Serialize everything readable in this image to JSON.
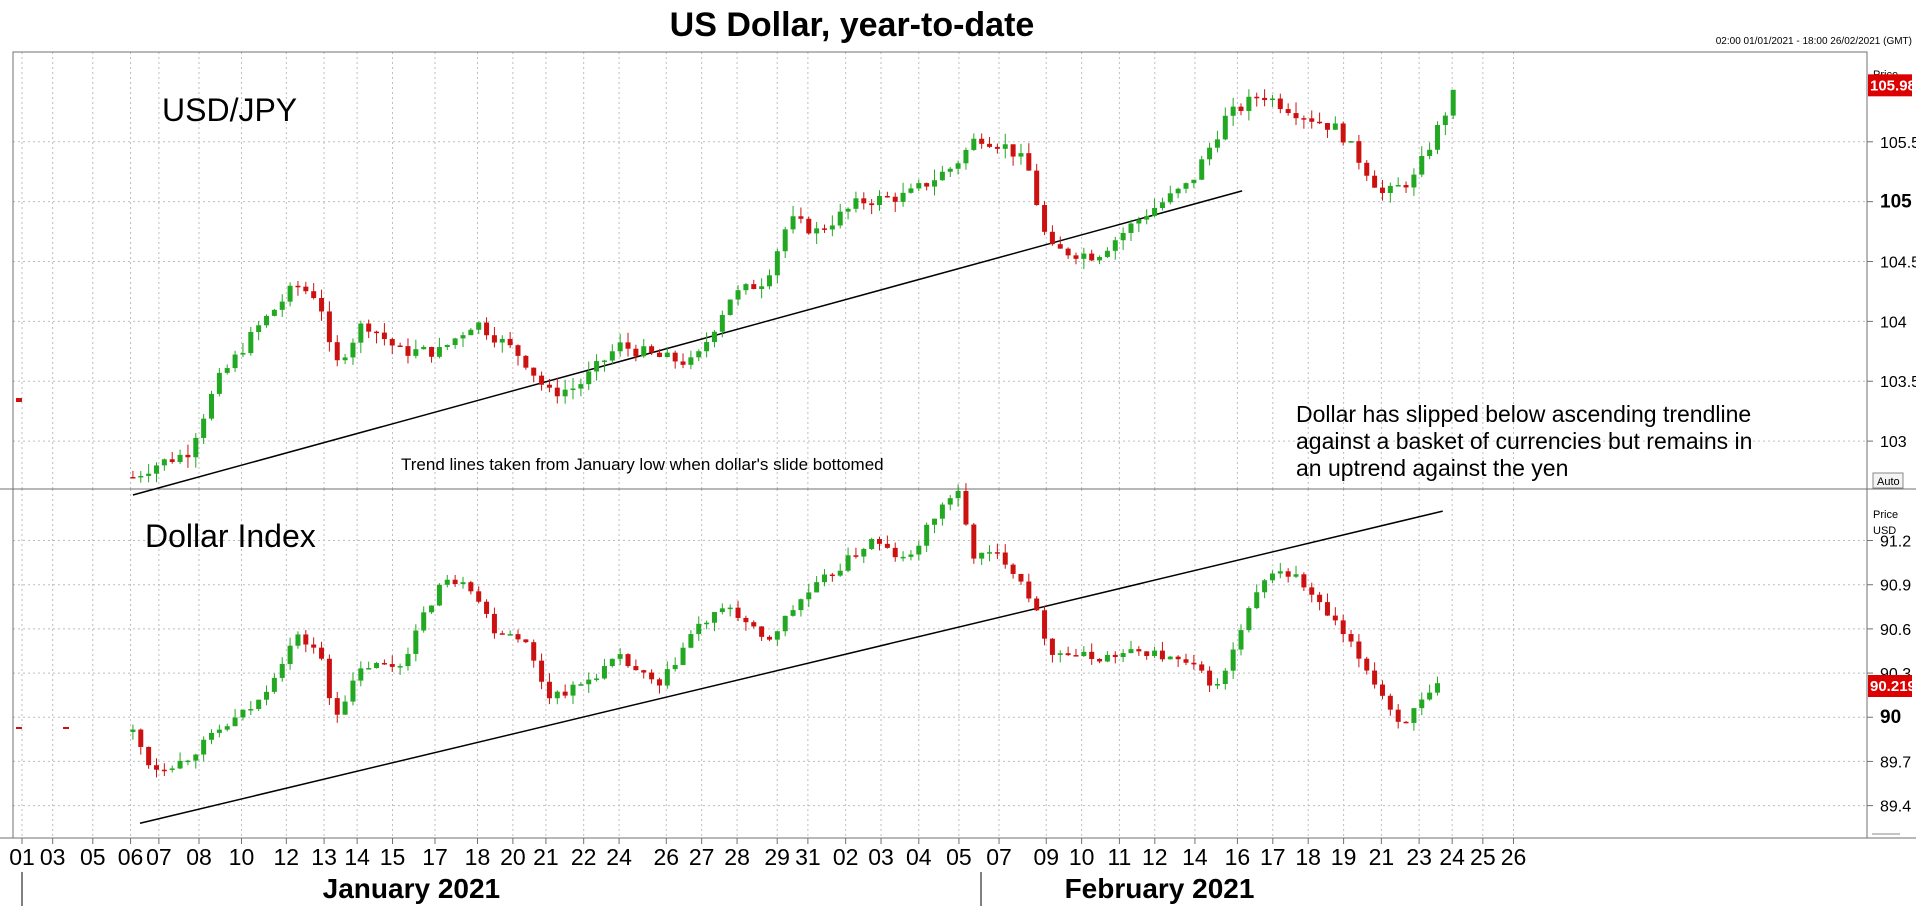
{
  "header": {
    "title": "US Dollar, year-to-date",
    "date_range": "02:00 01/01/2021 - 18:00 26/02/2021 (GMT)"
  },
  "colors": {
    "up": "#22a822",
    "down": "#cc1111",
    "grid": "#bdbdbd",
    "badge": "#dd0000"
  },
  "annotations": {
    "trend_note": "Trend lines taken from January low when dollar's slide bottomed",
    "dollar_note": [
      "Dollar has slipped below ascending trendline",
      "against a basket of currencies but remains in",
      "an uptrend against the yen"
    ]
  },
  "chart_data": [
    {
      "type": "candlestick",
      "name": "USD/JPY",
      "title": "USD/JPY",
      "axis_title": "Price",
      "axis_button": "Auto",
      "ylim": [
        102.6,
        106.25
      ],
      "yticks": [
        "103",
        "103.5",
        "104",
        "104.5",
        "105",
        "105.5"
      ],
      "ytick_values": [
        103,
        103.5,
        104,
        104.5,
        105,
        105.5
      ],
      "bold_tick": "105",
      "last_price": "105.98",
      "last_price_value": 105.98,
      "trendline": {
        "x": [
          4.7,
          51.7
        ],
        "y": [
          102.55,
          105.09
        ]
      },
      "anchors": [
        [
          4.7,
          102.7
        ],
        [
          5.6,
          102.8
        ],
        [
          7,
          102.9
        ],
        [
          8.3,
          103.5
        ],
        [
          10,
          103.95
        ],
        [
          11.6,
          104.3
        ],
        [
          12.6,
          104.2
        ],
        [
          13.2,
          103.6
        ],
        [
          14.5,
          104.0
        ],
        [
          16.0,
          103.75
        ],
        [
          17.7,
          103.75
        ],
        [
          19.2,
          104.0
        ],
        [
          21.2,
          103.7
        ],
        [
          22.3,
          103.4
        ],
        [
          23.5,
          103.45
        ],
        [
          25.3,
          103.8
        ],
        [
          27.0,
          103.7
        ],
        [
          28.5,
          103.65
        ],
        [
          30.0,
          104.2
        ],
        [
          31.5,
          104.35
        ],
        [
          32.5,
          104.85
        ],
        [
          33.7,
          104.75
        ],
        [
          35.5,
          105.0
        ],
        [
          37.5,
          105.05
        ],
        [
          39.5,
          105.3
        ],
        [
          40.5,
          105.55
        ],
        [
          41.8,
          105.45
        ],
        [
          42.6,
          105.3
        ],
        [
          43.5,
          104.6
        ],
        [
          45.5,
          104.55
        ],
        [
          47.6,
          104.9
        ],
        [
          49.5,
          105.15
        ],
        [
          51.0,
          105.7
        ],
        [
          52.5,
          105.9
        ],
        [
          54.0,
          105.75
        ],
        [
          55.8,
          105.6
        ],
        [
          57.7,
          105.05
        ],
        [
          59.0,
          105.2
        ],
        [
          60.8,
          105.95
        ]
      ]
    },
    {
      "type": "candlestick",
      "name": "Dollar Index",
      "title": "Dollar Index",
      "axis_title": "Price",
      "axis_unit": "USD",
      "ylim": [
        89.18,
        91.55
      ],
      "yticks": [
        "89.4",
        "89.7",
        "90",
        "90.3",
        "90.6",
        "90.9",
        "91.2"
      ],
      "ytick_values": [
        89.4,
        89.7,
        90,
        90.3,
        90.6,
        90.9,
        91.2
      ],
      "bold_tick": "90",
      "last_price": "90.219",
      "last_price_value": 90.219,
      "trendline": {
        "x": [
          5.0,
          60.2
        ],
        "y": [
          89.28,
          91.4
        ]
      },
      "anchors": [
        [
          4.7,
          89.9
        ],
        [
          5.5,
          89.65
        ],
        [
          6.8,
          89.7
        ],
        [
          8.3,
          89.9
        ],
        [
          10.0,
          90.1
        ],
        [
          11.6,
          90.55
        ],
        [
          12.6,
          90.45
        ],
        [
          13.2,
          90.0
        ],
        [
          14.5,
          90.35
        ],
        [
          16.0,
          90.35
        ],
        [
          17.7,
          90.9
        ],
        [
          18.8,
          90.95
        ],
        [
          20.0,
          90.6
        ],
        [
          21.2,
          90.55
        ],
        [
          22.3,
          90.15
        ],
        [
          23.5,
          90.2
        ],
        [
          25.3,
          90.4
        ],
        [
          27.0,
          90.2
        ],
        [
          28.5,
          90.6
        ],
        [
          30.0,
          90.75
        ],
        [
          31.5,
          90.5
        ],
        [
          33.0,
          90.8
        ],
        [
          34.5,
          91.0
        ],
        [
          36.0,
          91.2
        ],
        [
          37.5,
          91.05
        ],
        [
          38.8,
          91.4
        ],
        [
          39.6,
          91.55
        ],
        [
          40.3,
          91.1
        ],
        [
          41.5,
          91.1
        ],
        [
          42.5,
          90.9
        ],
        [
          43.6,
          90.45
        ],
        [
          45.5,
          90.4
        ],
        [
          47.6,
          90.45
        ],
        [
          49.5,
          90.35
        ],
        [
          50.7,
          90.2
        ],
        [
          52.2,
          90.8
        ],
        [
          53.0,
          91.0
        ],
        [
          54.0,
          90.95
        ],
        [
          55.8,
          90.6
        ],
        [
          57.1,
          90.3
        ],
        [
          58.4,
          89.95
        ],
        [
          60.0,
          90.2
        ]
      ]
    }
  ],
  "x_axis": {
    "ticks": [
      "01",
      "03",
      "05",
      "06",
      "07",
      "08",
      "10",
      "12",
      "13",
      "14",
      "15",
      "17",
      "18",
      "20",
      "21",
      "22",
      "24",
      "26",
      "27",
      "28",
      "29",
      "31",
      "02",
      "03",
      "04",
      "05",
      "07",
      "09",
      "10",
      "11",
      "12",
      "14",
      "16",
      "17",
      "18",
      "19",
      "21",
      "23",
      "24",
      "25",
      "26"
    ],
    "tick_positions": [
      0,
      1.3,
      3.0,
      4.6,
      5.8,
      7.5,
      9.3,
      11.2,
      12.8,
      14.2,
      15.7,
      17.5,
      19.3,
      20.8,
      22.2,
      23.8,
      25.3,
      27.3,
      28.8,
      30.3,
      32.0,
      33.3,
      34.9,
      36.4,
      38.0,
      39.7,
      41.4,
      43.4,
      44.9,
      46.5,
      48.0,
      49.7,
      51.5,
      53.0,
      54.5,
      56.0,
      57.6,
      59.2,
      60.6,
      61.9,
      63.2
    ],
    "months": [
      "January 2021",
      "February 2021"
    ],
    "month_positions": [
      16.5,
      48.2
    ]
  }
}
